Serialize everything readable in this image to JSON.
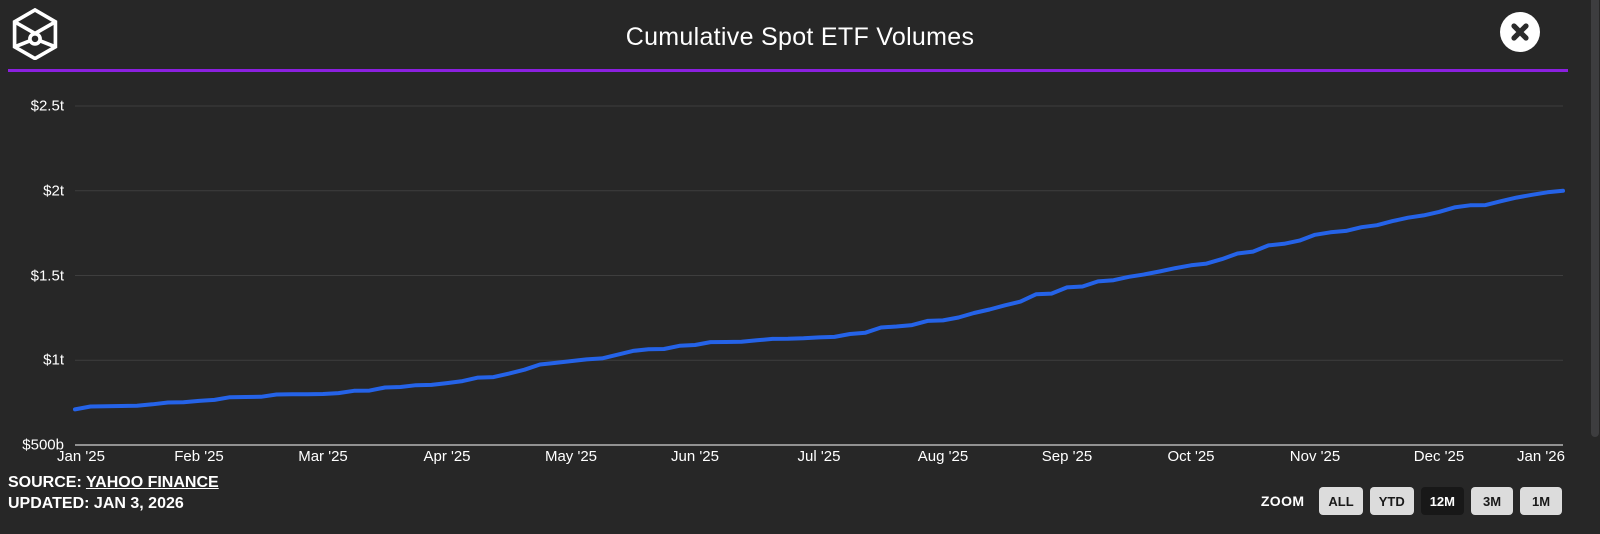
{
  "header": {
    "title": "Cumulative Spot ETF Volumes"
  },
  "close_button": {
    "symbol": "✕"
  },
  "footer": {
    "source_label": "SOURCE:",
    "source_link_text": "YAHOO FINANCE",
    "updated_text": "UPDATED: JAN 3, 2026"
  },
  "zoom_controls": {
    "label": "ZOOM",
    "options": [
      {
        "label": "ALL",
        "active": false
      },
      {
        "label": "YTD",
        "active": false
      },
      {
        "label": "12M",
        "active": true
      },
      {
        "label": "3M",
        "active": false
      },
      {
        "label": "1M",
        "active": false
      }
    ]
  },
  "colors": {
    "background": "#272727",
    "accent_divider": "#8b20df",
    "line": "#2563e8",
    "gridline": "#3e3e3e",
    "axis_line": "#929292",
    "text": "#ffffff",
    "button_bg": "#dcdcdc",
    "button_text": "#191919",
    "button_active_bg": "#181818",
    "button_active_text": "#ffffff"
  },
  "chart_data": {
    "type": "line",
    "title": "Cumulative Spot ETF Volumes",
    "x_tick_labels": [
      "Jan '25",
      "Feb '25",
      "Mar '25",
      "Apr '25",
      "May '25",
      "Jun '25",
      "Jul '25",
      "Aug '25",
      "Sep '25",
      "Oct '25",
      "Nov '25",
      "Dec '25",
      "Jan '26"
    ],
    "series": [
      {
        "name": "Cumulative Spot ETF Volume",
        "values_billions_usd": [
          710,
          760,
          800,
          865,
          995,
          1090,
          1135,
          1235,
          1430,
          1560,
          1740,
          1875,
          2000
        ]
      }
    ],
    "y_tick_labels": [
      "$500b",
      "$1t",
      "$1.5t",
      "$2t",
      "$2.5t"
    ],
    "y_tick_values_billions_usd": [
      500,
      1000,
      1500,
      2000,
      2500
    ],
    "ylim_billions_usd": [
      500,
      2500
    ],
    "grid": true,
    "legend": false,
    "line_color": "#2563e8"
  }
}
